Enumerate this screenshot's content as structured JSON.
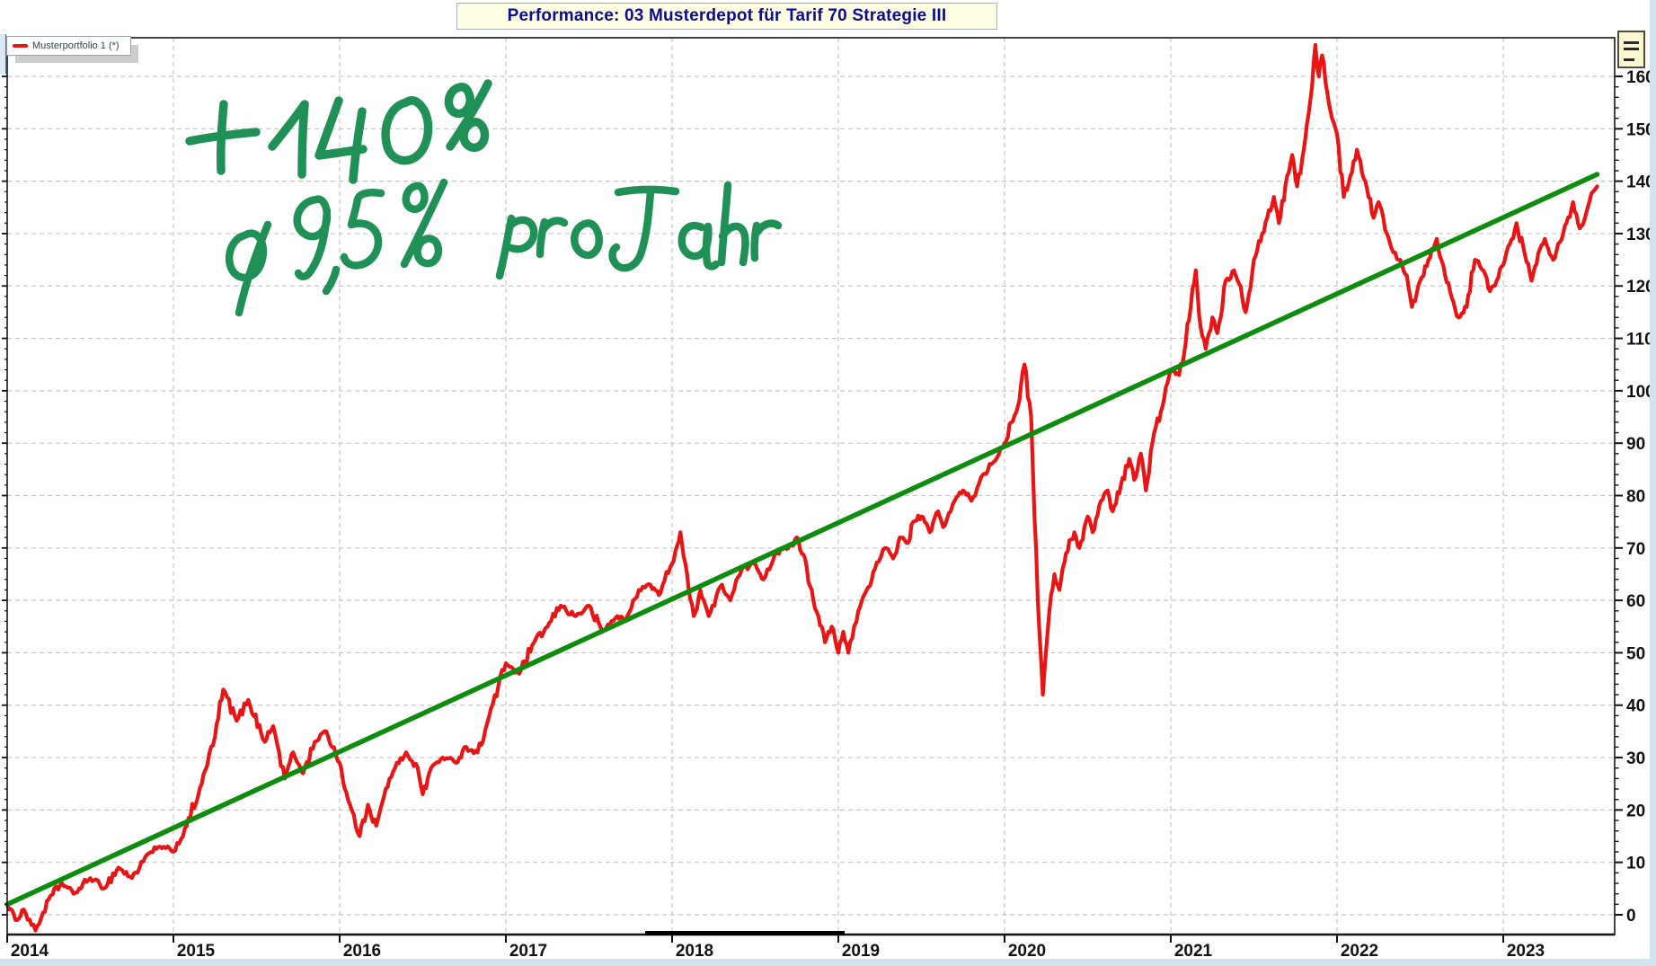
{
  "header": {
    "title": "Performance: 03 Musterdepot für Tarif 70 Strategie III"
  },
  "legend": {
    "label": "Musterportfolio 1 (*)",
    "marker_color": "#e91515"
  },
  "controls": {
    "axis_menu_icon": "hamburger-lines"
  },
  "colors": {
    "series_red": "#e91515",
    "trend_green": "#0e8c0e",
    "annotation_green": "#1f9156",
    "grid": "#c6c6c6",
    "frame": "#151515",
    "title_text": "#0a0a96",
    "title_bg": "#ffffe3",
    "window_edge": "#d2e3f0"
  },
  "chart_data": {
    "type": "line",
    "title": "Performance: 03 Musterdepot für Tarif 70 Strategie III",
    "xlabel": "",
    "ylabel": "",
    "x_axis": {
      "tick_years": [
        2014,
        2015,
        2016,
        2017,
        2018,
        2019,
        2020,
        2021,
        2022,
        2023
      ],
      "min": 2014.0,
      "max": 2023.62
    },
    "y_axis": {
      "min": 0,
      "max": 160,
      "major_step": 10,
      "minor_step": 2,
      "side": "right"
    },
    "grid": true,
    "legend_position": "top-left",
    "annotations": [
      {
        "text": "+ 140 %",
        "color": "#1f9156",
        "style": "handwritten"
      },
      {
        "text": "ø 9,5 % pro Jahr",
        "color": "#1f9156",
        "style": "handwritten"
      }
    ],
    "series": [
      {
        "name": "Musterportfolio 1 (*)",
        "color": "#e91515",
        "x": [
          2014.0,
          2014.05,
          2014.1,
          2014.17,
          2014.25,
          2014.33,
          2014.4,
          2014.5,
          2014.58,
          2014.67,
          2014.75,
          2014.83,
          2014.92,
          2015.0,
          2015.08,
          2015.17,
          2015.25,
          2015.3,
          2015.38,
          2015.45,
          2015.55,
          2015.6,
          2015.67,
          2015.72,
          2015.78,
          2015.85,
          2015.92,
          2016.0,
          2016.05,
          2016.12,
          2016.17,
          2016.22,
          2016.3,
          2016.4,
          2016.47,
          2016.5,
          2016.55,
          2016.62,
          2016.7,
          2016.75,
          2016.83,
          2016.9,
          2017.0,
          2017.08,
          2017.17,
          2017.25,
          2017.33,
          2017.42,
          2017.5,
          2017.58,
          2017.67,
          2017.72,
          2017.8,
          2017.87,
          2017.92,
          2018.0,
          2018.05,
          2018.1,
          2018.13,
          2018.17,
          2018.22,
          2018.3,
          2018.35,
          2018.42,
          2018.5,
          2018.55,
          2018.62,
          2018.7,
          2018.75,
          2018.8,
          2018.85,
          2018.88,
          2018.92,
          2018.96,
          2019.0,
          2019.03,
          2019.06,
          2019.12,
          2019.17,
          2019.22,
          2019.28,
          2019.33,
          2019.37,
          2019.42,
          2019.45,
          2019.5,
          2019.55,
          2019.6,
          2019.63,
          2019.7,
          2019.75,
          2019.8,
          2019.87,
          2019.92,
          2020.0,
          2020.04,
          2020.08,
          2020.12,
          2020.16,
          2020.2,
          2020.23,
          2020.27,
          2020.3,
          2020.33,
          2020.37,
          2020.42,
          2020.45,
          2020.5,
          2020.53,
          2020.58,
          2020.62,
          2020.65,
          2020.7,
          2020.75,
          2020.78,
          2020.82,
          2020.85,
          2020.9,
          2020.95,
          2021.0,
          2021.05,
          2021.08,
          2021.12,
          2021.15,
          2021.18,
          2021.21,
          2021.25,
          2021.28,
          2021.33,
          2021.38,
          2021.42,
          2021.45,
          2021.5,
          2021.55,
          2021.58,
          2021.62,
          2021.65,
          2021.7,
          2021.73,
          2021.76,
          2021.8,
          2021.83,
          2021.87,
          2021.89,
          2021.91,
          2021.95,
          2022.0,
          2022.04,
          2022.08,
          2022.12,
          2022.17,
          2022.22,
          2022.25,
          2022.3,
          2022.33,
          2022.38,
          2022.42,
          2022.45,
          2022.5,
          2022.55,
          2022.6,
          2022.65,
          2022.7,
          2022.73,
          2022.78,
          2022.83,
          2022.88,
          2022.92,
          2022.96,
          2023.0,
          2023.04,
          2023.08,
          2023.13,
          2023.17,
          2023.22,
          2023.25,
          2023.3,
          2023.33,
          2023.38,
          2023.42,
          2023.46,
          2023.5,
          2023.54,
          2023.565
        ],
        "y": [
          2,
          -1,
          1,
          -3,
          3,
          6,
          4,
          7,
          5,
          9,
          7,
          11,
          13,
          12,
          17,
          25,
          34,
          43,
          37,
          41,
          33,
          36,
          26,
          31,
          27,
          33,
          35,
          29,
          22,
          15,
          21,
          17,
          26,
          31,
          28,
          23,
          28,
          30,
          29,
          32,
          31,
          38,
          48,
          46,
          52,
          55,
          59,
          57,
          59,
          54,
          57,
          56,
          62,
          63,
          61,
          67,
          73,
          62,
          57,
          62,
          57,
          63,
          60,
          66,
          67,
          64,
          69,
          70,
          72,
          68,
          60,
          57,
          52,
          55,
          50,
          54,
          50,
          58,
          62,
          66,
          70,
          68,
          72,
          71,
          75,
          76,
          73,
          77,
          74,
          79,
          81,
          79,
          84,
          86,
          90,
          94,
          97,
          105,
          95,
          60,
          42,
          58,
          65,
          62,
          69,
          73,
          70,
          76,
          73,
          79,
          81,
          77,
          82,
          87,
          83,
          88,
          81,
          92,
          97,
          104,
          103,
          107,
          116,
          123,
          112,
          108,
          114,
          111,
          121,
          123,
          120,
          115,
          125,
          130,
          133,
          137,
          132,
          141,
          145,
          139,
          146,
          153,
          166,
          160,
          164,
          155,
          149,
          137,
          141,
          146,
          140,
          133,
          136,
          130,
          127,
          125,
          122,
          116,
          121,
          125,
          129,
          122,
          117,
          114,
          116,
          125,
          123,
          119,
          121,
          124,
          128,
          132,
          126,
          121,
          127,
          129,
          125,
          128,
          132,
          136,
          131,
          134,
          138,
          139
        ]
      },
      {
        "name": "Trend",
        "color": "#0e8c0e",
        "x": [
          2014.0,
          2023.565
        ],
        "y": [
          2.0,
          141.3
        ]
      }
    ]
  }
}
